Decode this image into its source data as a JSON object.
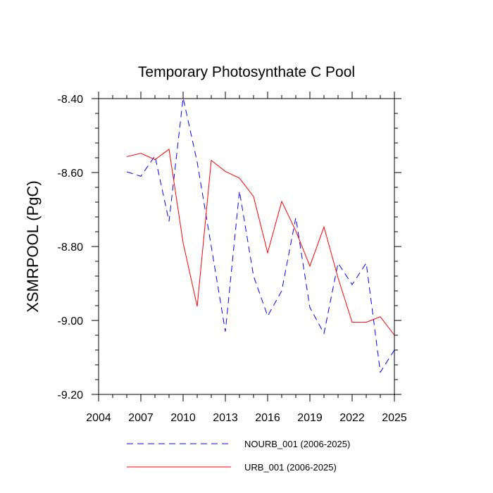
{
  "chart_data": {
    "type": "line",
    "title": "Temporary Photosynthate C Pool",
    "xlabel": "",
    "ylabel": "XSMRPOOL  (PgC)",
    "xlim": [
      2004,
      2025
    ],
    "ylim": [
      -9.2,
      -8.4
    ],
    "x_ticks": [
      2004,
      2007,
      2010,
      2013,
      2016,
      2019,
      2022,
      2025
    ],
    "x_tick_labels": [
      "2004",
      "2007",
      "2010",
      "2013",
      "2016",
      "2019",
      "2022",
      "2025"
    ],
    "y_ticks": [
      -8.4,
      -8.6,
      -8.8,
      -9.0,
      -9.2
    ],
    "y_tick_labels": [
      "-8.40",
      "-8.60",
      "-8.80",
      "-9.00",
      "-9.20"
    ],
    "x": [
      2006,
      2007,
      2008,
      2009,
      2010,
      2011,
      2012,
      2013,
      2014,
      2015,
      2016,
      2017,
      2018,
      2019,
      2020,
      2021,
      2022,
      2023,
      2024,
      2025
    ],
    "series": [
      {
        "name": "NOURB_001 (2006-2025)",
        "color": "#0000ff",
        "style": "dashed",
        "values": [
          -8.598,
          -8.61,
          -8.555,
          -8.732,
          -8.398,
          -8.572,
          -8.8,
          -9.03,
          -8.65,
          -8.88,
          -8.988,
          -8.92,
          -8.722,
          -8.965,
          -9.035,
          -8.845,
          -8.903,
          -8.845,
          -9.14,
          -9.08
        ]
      },
      {
        "name": "URB_001 (2006-2025)",
        "color": "#ff0000",
        "style": "solid",
        "values": [
          -8.557,
          -8.548,
          -8.565,
          -8.537,
          -8.79,
          -8.962,
          -8.567,
          -8.597,
          -8.615,
          -8.665,
          -8.817,
          -8.678,
          -8.758,
          -8.853,
          -8.747,
          -8.885,
          -9.005,
          -9.005,
          -8.99,
          -9.04
        ]
      }
    ],
    "legend": "bottom",
    "grid": false
  }
}
